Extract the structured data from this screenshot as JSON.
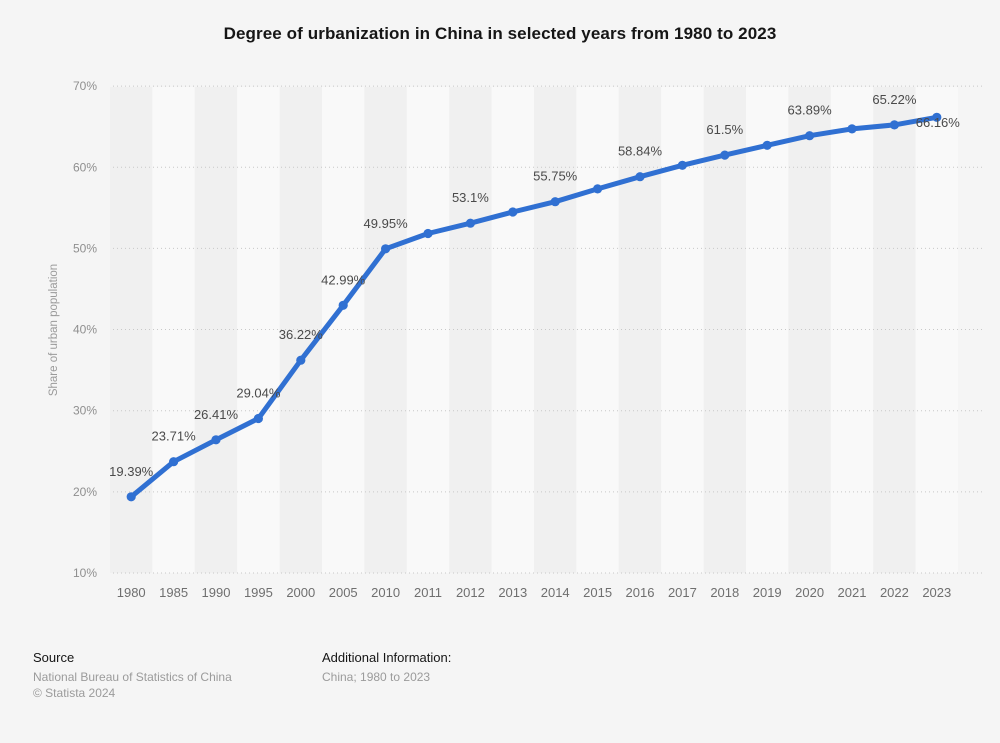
{
  "title": "Degree of urbanization in China in selected years from 1980 to 2023",
  "chart_data": {
    "type": "line",
    "title": "Degree of urbanization in China in selected years from 1980 to 2023",
    "xlabel": "",
    "ylabel": "Share of urban population",
    "ylim": [
      10,
      70
    ],
    "yticks": [
      "10%",
      "20%",
      "30%",
      "40%",
      "50%",
      "60%",
      "70%"
    ],
    "grid": "dotted-horizontal",
    "legend": "none",
    "band_shading": "alternating-columns",
    "categories": [
      "1980",
      "1985",
      "1990",
      "1995",
      "2000",
      "2005",
      "2010",
      "2011",
      "2012",
      "2013",
      "2014",
      "2015",
      "2016",
      "2017",
      "2018",
      "2019",
      "2020",
      "2021",
      "2022",
      "2023"
    ],
    "values": [
      19.39,
      23.71,
      26.41,
      29.04,
      36.22,
      42.99,
      49.95,
      51.83,
      53.1,
      54.49,
      55.75,
      57.33,
      58.84,
      60.24,
      61.5,
      62.71,
      63.89,
      64.72,
      65.22,
      66.16
    ],
    "point_labels": [
      "19.39%",
      "23.71%",
      "26.41%",
      "29.04%",
      "36.22%",
      "42.99%",
      "49.95%",
      "",
      "53.1%",
      "",
      "55.75%",
      "",
      "58.84%",
      "",
      "61.5%",
      "",
      "63.89%",
      "",
      "65.22%",
      "66.16%"
    ],
    "line_color": "#3070d2",
    "marker_color": "#3070d2",
    "label_color": "#4a4a4a",
    "band_color_dark": "#f0f0f0",
    "band_color_light": "#f9f9f9",
    "grid_color": "#c8c8c8",
    "tick_color": "#8f8f8f",
    "xtick_color": "#6f6f6f",
    "axis_label_color": "#9a9a9a"
  },
  "footer": {
    "source_heading": "Source",
    "source_name": "National Bureau of Statistics of China",
    "copyright": "© Statista 2024",
    "additional_heading": "Additional Information:",
    "additional_value": "China; 1980 to 2023"
  }
}
